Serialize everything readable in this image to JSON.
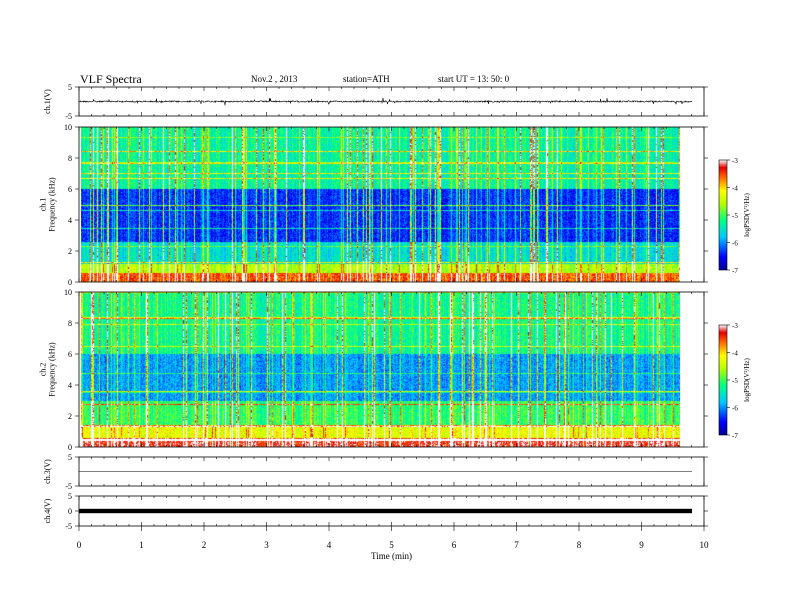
{
  "header": {
    "title": "VLF Spectra",
    "date": "Nov.2 , 2013",
    "station": "station=ATH",
    "start": "start UT = 13: 50: 0"
  },
  "chart_data": [
    {
      "type": "line",
      "panel": "ch1-waveform",
      "ylabel": "ch.1(V)",
      "yticks": [
        "5",
        "-5"
      ],
      "ylim": [
        -5,
        5
      ],
      "xlim": [
        0,
        10
      ],
      "data_extent_min": 9.8,
      "baseline_V": 0.0,
      "description": "noisy waveform with spikes"
    },
    {
      "type": "heatmap",
      "panel": "ch1-spectrogram",
      "ylabel": "ch.1\nFrequency (kHz)",
      "ylabel_lines": [
        "ch.1",
        "Frequency (kHz)"
      ],
      "yticks": [
        "0",
        "2",
        "4",
        "6",
        "8",
        "10"
      ],
      "ylim": [
        0,
        10
      ],
      "xlim": [
        0,
        10
      ],
      "data_extent_min": 9.8,
      "colorbar": {
        "label": "logPSD(V²/Hz)",
        "ticks": [
          "-3",
          "-4",
          "-5",
          "-6",
          "-7"
        ],
        "range": [
          -7,
          -3
        ]
      }
    },
    {
      "type": "heatmap",
      "panel": "ch2-spectrogram",
      "ylabel": "ch.2\nFrequency (kHz)",
      "ylabel_lines": [
        "ch.2",
        "Frequency (kHz)"
      ],
      "yticks": [
        "0",
        "2",
        "4",
        "6",
        "8",
        "10"
      ],
      "ylim": [
        0,
        10
      ],
      "xlim": [
        0,
        10
      ],
      "data_extent_min": 9.8,
      "colorbar": {
        "label": "logPSD(V²/Hz)",
        "ticks": [
          "-3",
          "-4",
          "-5",
          "-6",
          "-7"
        ],
        "range": [
          -7,
          -3
        ]
      }
    },
    {
      "type": "line",
      "panel": "ch3-waveform",
      "ylabel": "ch.3(V)",
      "yticks": [
        "5",
        "-5"
      ],
      "ylim": [
        -5,
        5
      ],
      "xlim": [
        0,
        10
      ],
      "data_extent_min": 9.8,
      "baseline_V": 0.0
    },
    {
      "type": "line",
      "panel": "ch4-waveform",
      "ylabel": "ch.4(V)",
      "yticks": [
        "5",
        "0",
        "-5"
      ],
      "ylim": [
        -5,
        5
      ],
      "xlim": [
        0,
        10
      ],
      "data_extent_min": 9.8,
      "baseline_V": 0.0
    }
  ],
  "xaxis": {
    "label": "Time (min)",
    "ticks": [
      "0",
      "1",
      "2",
      "3",
      "4",
      "5",
      "6",
      "7",
      "8",
      "9",
      "10"
    ]
  }
}
